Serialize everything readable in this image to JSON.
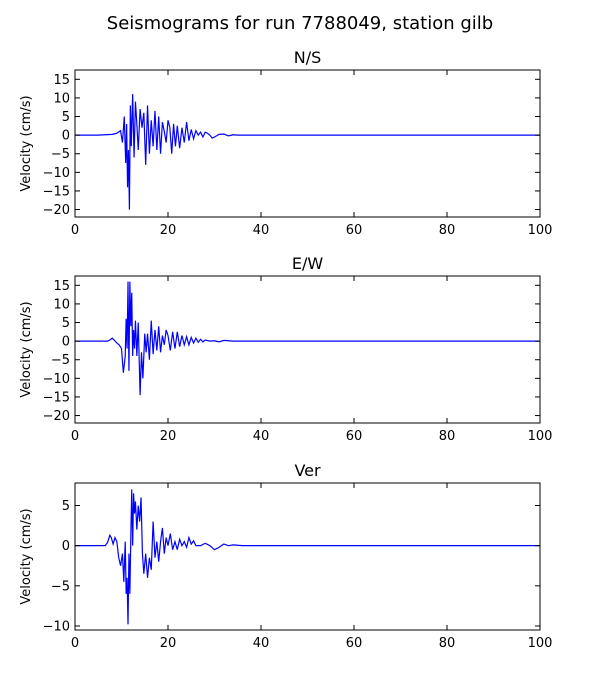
{
  "figure": {
    "title": "Seismograms for run 7788049, station gilb"
  },
  "chart_data": [
    {
      "type": "line",
      "title": "N/S",
      "xlabel": "",
      "ylabel": "Velocity (cm/s)",
      "xlim": [
        0,
        100
      ],
      "ylim": [
        -22,
        17.5
      ],
      "xticks": [
        0,
        20,
        40,
        60,
        80,
        100
      ],
      "yticks": [
        -20,
        -15,
        -10,
        -5,
        0,
        5,
        10,
        15
      ],
      "grid": false,
      "color": "#0000ff",
      "series": [
        {
          "x": [
            0,
            5,
            8,
            9,
            9.8,
            10.2,
            10.6,
            10.9,
            11.1,
            11.3,
            11.5,
            11.7,
            11.9,
            12.1,
            12.4,
            12.7,
            13.0,
            13.3,
            13.6,
            14.0,
            14.4,
            14.8,
            15.2,
            15.6,
            16.0,
            16.4,
            16.8,
            17.2,
            17.6,
            18.0,
            18.4,
            18.8,
            19.2,
            19.6,
            20.0,
            20.4,
            20.8,
            21.2,
            21.6,
            22.0,
            22.5,
            23.0,
            23.5,
            24.0,
            24.5,
            25.0,
            25.5,
            26.0,
            26.5,
            27.0,
            27.5,
            28.0,
            28.5,
            29.0,
            29.5,
            30.0,
            31.0,
            32.0,
            33.0,
            34.0,
            35.0,
            36.0,
            38.0,
            40.0,
            50.0,
            60.0,
            70.0,
            80.0,
            90.0,
            100.0
          ],
          "y": [
            0,
            0,
            0.2,
            0.5,
            1.2,
            -2.0,
            5.0,
            -7.5,
            3.0,
            -14.0,
            -4.0,
            -20.0,
            8.0,
            -3.0,
            11.0,
            -6.0,
            9.0,
            3.0,
            -4.0,
            7.0,
            2.0,
            6.0,
            -8.0,
            8.0,
            -5.0,
            4.0,
            -3.0,
            6.5,
            -4.0,
            5.0,
            -5.0,
            3.5,
            1.0,
            -2.0,
            4.0,
            2.0,
            -5.0,
            3.0,
            -3.0,
            2.5,
            -3.5,
            2.0,
            -2.0,
            3.5,
            -1.5,
            1.5,
            -1.0,
            1.2,
            0.0,
            0.8,
            -0.5,
            0.8,
            0.5,
            0.0,
            -0.8,
            -0.5,
            0.2,
            0.3,
            -0.2,
            0.1,
            0.0,
            0.0,
            0.0,
            0.0,
            0.0,
            0.0,
            0.0,
            0.0,
            0.0,
            0.0
          ]
        }
      ]
    },
    {
      "type": "line",
      "title": "E/W",
      "xlabel": "",
      "ylabel": "Velocity (cm/s)",
      "xlim": [
        0,
        100
      ],
      "ylim": [
        -22,
        17.5
      ],
      "xticks": [
        0,
        20,
        40,
        60,
        80,
        100
      ],
      "yticks": [
        -20,
        -15,
        -10,
        -5,
        0,
        5,
        10,
        15
      ],
      "grid": false,
      "color": "#0000ff",
      "series": [
        {
          "x": [
            0,
            5,
            7,
            7.5,
            8.0,
            8.5,
            9.0,
            9.5,
            10.0,
            10.4,
            10.8,
            11.0,
            11.2,
            11.4,
            11.6,
            11.8,
            12.0,
            12.2,
            12.4,
            12.6,
            12.8,
            13.0,
            13.3,
            13.6,
            14.0,
            14.3,
            14.6,
            15.0,
            15.3,
            15.6,
            16.0,
            16.4,
            16.8,
            17.2,
            17.6,
            18.0,
            18.4,
            18.8,
            19.2,
            19.6,
            20.0,
            20.5,
            21.0,
            21.5,
            22.0,
            22.5,
            23.0,
            23.5,
            24.0,
            24.5,
            25.0,
            25.5,
            26.0,
            26.5,
            27.0,
            27.5,
            28.0,
            29.0,
            30.0,
            31.0,
            32.0,
            33.0,
            34.0,
            36.0,
            40.0,
            50.0,
            60.0,
            70.0,
            80.0,
            90.0,
            100.0
          ],
          "y": [
            0,
            0,
            0.0,
            0.3,
            0.8,
            0.2,
            -0.5,
            -1.0,
            -2.0,
            -8.5,
            -4.0,
            6.0,
            -2.0,
            16.0,
            -8.0,
            16.0,
            4.0,
            13.0,
            -4.0,
            3.0,
            -2.0,
            5.5,
            -4.0,
            5.0,
            -14.5,
            -3.0,
            -10.0,
            2.0,
            -3.0,
            2.0,
            -5.0,
            5.5,
            -3.5,
            3.0,
            -2.5,
            4.0,
            -3.0,
            1.5,
            -1.0,
            3.0,
            1.5,
            -2.5,
            2.5,
            -2.0,
            2.5,
            -1.5,
            1.5,
            -1.0,
            1.2,
            -1.0,
            1.0,
            -0.5,
            0.8,
            -0.3,
            0.5,
            -0.2,
            0.3,
            0.0,
            0.1,
            -0.2,
            0.2,
            0.1,
            0.0,
            0.0,
            0.0,
            0.0,
            0.0,
            0.0,
            0.0,
            0.0,
            0.0
          ]
        }
      ]
    },
    {
      "type": "line",
      "title": "Ver",
      "xlabel": "",
      "ylabel": "Velocity (cm/s)",
      "xlim": [
        0,
        100
      ],
      "ylim": [
        -10.5,
        7.8
      ],
      "xticks": [
        0,
        20,
        40,
        60,
        80,
        100
      ],
      "yticks": [
        -10,
        -5,
        0,
        5
      ],
      "grid": false,
      "color": "#0000ff",
      "series": [
        {
          "x": [
            0,
            5,
            6.5,
            7.0,
            7.5,
            7.8,
            8.2,
            8.6,
            9.0,
            9.4,
            9.8,
            10.2,
            10.5,
            10.8,
            11.0,
            11.2,
            11.4,
            11.6,
            11.8,
            12.0,
            12.2,
            12.4,
            12.6,
            12.8,
            13.0,
            13.3,
            13.6,
            13.9,
            14.2,
            14.5,
            14.8,
            15.2,
            15.6,
            16.0,
            16.4,
            16.8,
            17.2,
            17.6,
            18.0,
            18.4,
            18.8,
            19.2,
            19.6,
            20.0,
            20.5,
            21.0,
            21.5,
            22.0,
            22.5,
            23.0,
            23.5,
            24.0,
            24.5,
            25.0,
            25.5,
            26.0,
            27.0,
            28.0,
            29.0,
            30.0,
            31.0,
            32.0,
            33.0,
            34.0,
            36.0,
            40.0,
            50.0,
            60.0,
            70.0,
            80.0,
            90.0,
            100.0
          ],
          "y": [
            0,
            0,
            0.0,
            0.4,
            1.3,
            1.0,
            0.2,
            1.0,
            0.5,
            -1.5,
            -2.5,
            -1.0,
            -4.5,
            0.5,
            -6.0,
            -4.0,
            -9.8,
            -1.0,
            -6.0,
            1.0,
            7.0,
            0.0,
            6.5,
            4.0,
            5.5,
            2.0,
            5.0,
            3.0,
            6.0,
            -1.0,
            -3.5,
            -1.0,
            -4.0,
            -1.5,
            -3.0,
            3.0,
            -1.5,
            0.5,
            -2.0,
            0.5,
            2.2,
            -1.0,
            1.0,
            0.0,
            1.5,
            -0.5,
            0.5,
            -0.5,
            0.8,
            0.0,
            0.5,
            -0.2,
            1.0,
            0.2,
            0.6,
            0.0,
            0.0,
            0.3,
            0.0,
            -0.5,
            -0.2,
            0.2,
            0.0,
            0.1,
            0.0,
            0.0,
            0.0,
            0.0,
            0.0,
            0.0,
            0.0,
            0.0
          ]
        }
      ]
    }
  ]
}
